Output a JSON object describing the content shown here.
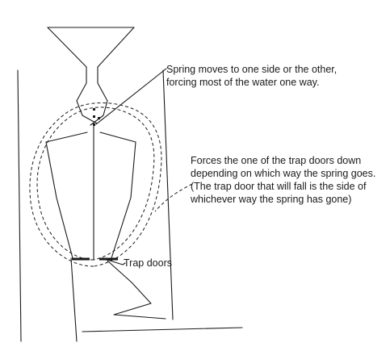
{
  "diagram": {
    "annotations": {
      "spring": [
        "Spring moves to one side or the other,",
        "forcing most of the water one way."
      ],
      "forces": [
        "Forces the one of the trap doors down",
        "depending on which way the spring goes.",
        "(The trap door that will fall is the side of",
        "whichever way the spring has gone)"
      ],
      "trap_doors": "Trap doors"
    },
    "colors": {
      "line": "#1a1a1a",
      "background": "#ffffff"
    }
  }
}
